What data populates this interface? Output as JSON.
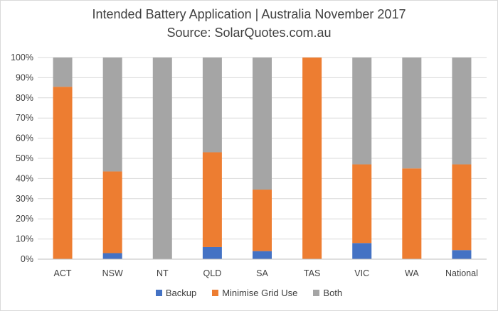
{
  "chart_data": {
    "type": "bar",
    "stacked": true,
    "title": "Intended Battery Application | Australia November 2017",
    "subtitle": "Source: SolarQuotes.com.au",
    "categories": [
      "ACT",
      "NSW",
      "NT",
      "QLD",
      "SA",
      "TAS",
      "VIC",
      "WA",
      "National"
    ],
    "series": [
      {
        "name": "Backup",
        "color": "#4472C4",
        "values": [
          0,
          3,
          0,
          6,
          4,
          0,
          8,
          0,
          4.5
        ]
      },
      {
        "name": "Minimise Grid Use",
        "color": "#ED7D31",
        "values": [
          85.5,
          40.5,
          0,
          47,
          30.5,
          100,
          39,
          45,
          42.5
        ]
      },
      {
        "name": "Both",
        "color": "#A5A5A5",
        "values": [
          14.5,
          56.5,
          100,
          47,
          65.5,
          0,
          53,
          55,
          53
        ]
      }
    ],
    "ylim": [
      0,
      100
    ],
    "yticks": [
      "0%",
      "10%",
      "20%",
      "30%",
      "40%",
      "50%",
      "60%",
      "70%",
      "80%",
      "90%",
      "100%"
    ],
    "grid": true,
    "legend": "bottom"
  }
}
